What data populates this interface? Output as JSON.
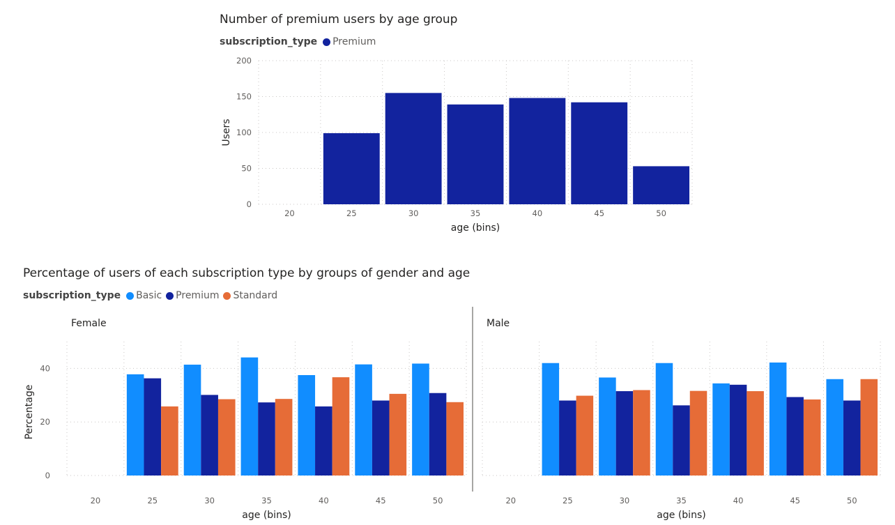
{
  "colors": {
    "Basic": "#118dff",
    "Premium": "#12239e",
    "Standard": "#e66c37",
    "grid": "#c8c6c4",
    "divider": "#8a8886"
  },
  "chart_data": [
    {
      "type": "bar",
      "title": "Number of premium users by age group",
      "legend_title": "subscription_type",
      "legend": [
        "Premium"
      ],
      "categories": [
        "20",
        "25",
        "30",
        "35",
        "40",
        "45",
        "50"
      ],
      "series": [
        {
          "name": "Premium",
          "values": [
            0,
            99,
            155,
            139,
            148,
            142,
            53
          ]
        }
      ],
      "xlabel": "age (bins)",
      "ylabel": "Users",
      "ylim": [
        0,
        200
      ],
      "yticks": [
        "0",
        "50",
        "100",
        "150",
        "200"
      ],
      "grid": true
    },
    {
      "type": "bar",
      "title": "Percentage of users of each subscription type by groups of gender and age",
      "legend_title": "subscription_type",
      "legend": [
        "Basic",
        "Premium",
        "Standard"
      ],
      "categories": [
        "20",
        "25",
        "30",
        "35",
        "40",
        "45",
        "50"
      ],
      "xlabel": "age (bins)",
      "ylabel": "Percentage",
      "ylim": [
        0,
        50
      ],
      "yticks": [
        "0",
        "20",
        "40"
      ],
      "grid": true,
      "panels": [
        {
          "name": "Female",
          "series": [
            {
              "name": "Basic",
              "values": [
                0,
                37.8,
                41.4,
                44.1,
                37.5,
                41.5,
                41.8
              ]
            },
            {
              "name": "Premium",
              "values": [
                0,
                36.3,
                30.1,
                27.3,
                25.8,
                28.0,
                30.8
              ]
            },
            {
              "name": "Standard",
              "values": [
                0,
                25.8,
                28.5,
                28.6,
                36.7,
                30.5,
                27.4
              ]
            }
          ]
        },
        {
          "name": "Male",
          "series": [
            {
              "name": "Basic",
              "values": [
                0,
                42.0,
                36.6,
                42.0,
                34.4,
                42.2,
                36.0
              ]
            },
            {
              "name": "Premium",
              "values": [
                0,
                28.0,
                31.5,
                26.2,
                33.9,
                29.3,
                28.0
              ]
            },
            {
              "name": "Standard",
              "values": [
                0,
                29.8,
                31.9,
                31.6,
                31.5,
                28.4,
                36.0
              ]
            }
          ]
        }
      ]
    }
  ]
}
